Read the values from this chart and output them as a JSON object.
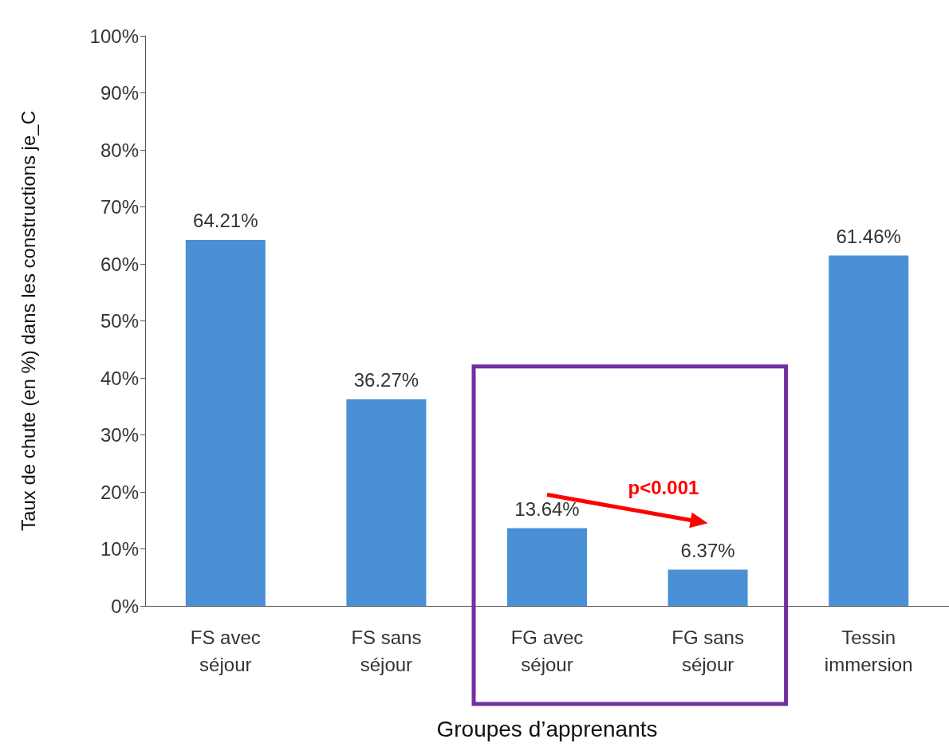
{
  "chart_data": {
    "type": "bar",
    "xlabel": "Groupes d’apprenants",
    "ylabel": "Taux de chute (en %) dans les constructions je_C",
    "categories": [
      "FS avec\nséjour",
      "FS sans\nséjour",
      "FG avec\nséjour",
      "FG sans\nséjour",
      "Tessin\nimmersion"
    ],
    "values": [
      64.21,
      36.27,
      13.64,
      6.37,
      61.46
    ],
    "value_labels": [
      "64.21%",
      "36.27%",
      "13.64%",
      "6.37%",
      "61.46%"
    ],
    "color": "#4a90d6",
    "ylim": [
      0,
      100
    ],
    "yticks": [
      {
        "value": 0,
        "label": "0%"
      },
      {
        "value": 10,
        "label": "10%"
      },
      {
        "value": 20,
        "label": "20%"
      },
      {
        "value": 30,
        "label": "30%"
      },
      {
        "value": 40,
        "label": "40%"
      },
      {
        "value": 50,
        "label": "50%"
      },
      {
        "value": 60,
        "label": "60%"
      },
      {
        "value": 70,
        "label": "70%"
      },
      {
        "value": 80,
        "label": "80%"
      },
      {
        "value": 90,
        "label": "90%"
      },
      {
        "value": 100,
        "label": "100%"
      }
    ],
    "annotations": [
      "p<0.001"
    ]
  }
}
